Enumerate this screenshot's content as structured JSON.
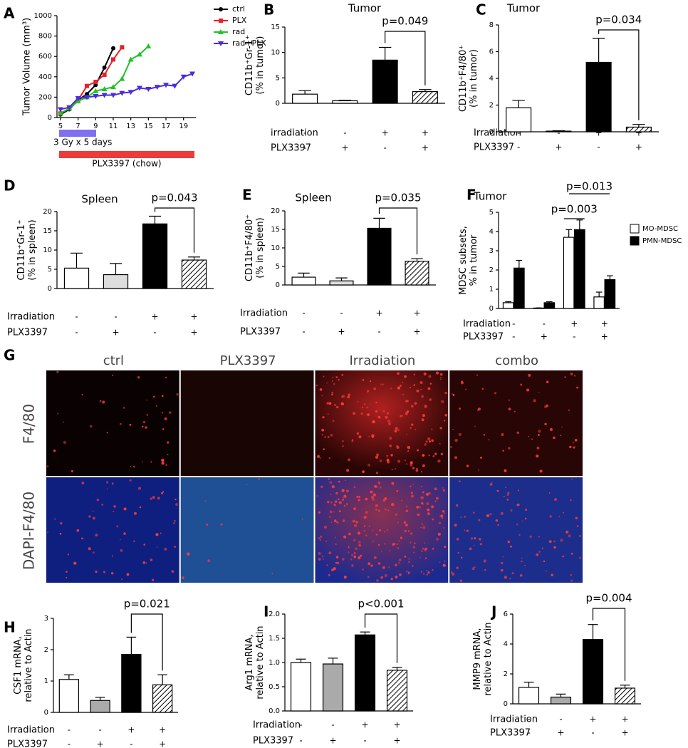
{
  "chart_data": [
    {
      "type": "line",
      "panel": "A",
      "ylabel": [
        "Tumor Volume (mm³)"
      ],
      "xlim": [
        4.6,
        20.4
      ],
      "xticks": [
        5,
        7,
        9,
        11,
        13,
        15,
        17,
        19
      ],
      "ylim": [
        0,
        1000
      ],
      "yticks": [
        0,
        200,
        400,
        600,
        800,
        1000
      ],
      "series": [
        {
          "name": "ctrl",
          "color": "#000000",
          "marker": "circle",
          "x": [
            5,
            6,
            7,
            8,
            9,
            10,
            11
          ],
          "values": [
            30,
            80,
            170,
            230,
            320,
            490,
            680
          ]
        },
        {
          "name": "PLX",
          "color": "#e8202a",
          "marker": "square",
          "x": [
            5,
            6,
            7,
            8,
            9,
            10,
            11,
            12
          ],
          "values": [
            40,
            90,
            170,
            310,
            350,
            420,
            570,
            690
          ]
        },
        {
          "name": "rad",
          "color": "#22c02a",
          "marker": "triangle",
          "x": [
            5,
            6,
            7,
            8,
            9,
            10,
            11,
            12,
            13,
            14,
            15
          ],
          "values": [
            40,
            90,
            160,
            200,
            260,
            280,
            300,
            380,
            570,
            620,
            700
          ]
        },
        {
          "name": "rad+PLX",
          "color": "#4b2ae0",
          "marker": "triangle-down",
          "x": [
            5,
            6,
            7,
            8,
            9,
            10,
            11,
            12,
            13,
            14,
            15,
            16,
            17,
            18,
            19,
            20
          ],
          "values": [
            80,
            100,
            190,
            200,
            210,
            220,
            220,
            240,
            250,
            290,
            280,
            300,
            320,
            310,
            400,
            430
          ]
        }
      ],
      "annotations": [
        {
          "text": "3 Gy x 5 days",
          "color": "#8070f0"
        },
        {
          "text": "PLX3397 (chow)",
          "color": "#f03a3a"
        }
      ]
    },
    {
      "type": "bar",
      "panel": "B",
      "title": "Tumor",
      "ylabel": [
        "CD11b⁺Gr-1⁺",
        "(% in tumor)"
      ],
      "ylim": [
        0,
        15
      ],
      "yticks": [
        0,
        5,
        10,
        15
      ],
      "values": [
        1.8,
        0.5,
        8.5,
        2.3
      ],
      "errors": [
        0.7,
        0.1,
        2.5,
        0.4
      ],
      "colors": [
        "#ffffff",
        "#ffffff",
        "#000000",
        "hatch"
      ],
      "comparison": "p=0.049",
      "rows": [
        {
          "label": "irradiation",
          "signs": [
            "-",
            "-",
            "+",
            "+"
          ]
        },
        {
          "label": "PLX3397",
          "signs": [
            "-",
            "+",
            "-",
            "+"
          ]
        }
      ]
    },
    {
      "type": "bar",
      "panel": "C",
      "title": "Tumor",
      "ylabel": [
        "CD11b⁺F4/80⁺",
        "(% in tumor)"
      ],
      "ylim": [
        0,
        8
      ],
      "yticks": [
        0,
        2,
        4,
        6,
        8
      ],
      "values": [
        1.8,
        0.05,
        5.2,
        0.35
      ],
      "errors": [
        0.55,
        0.03,
        1.8,
        0.2
      ],
      "colors": [
        "#ffffff",
        "#ffffff",
        "#000000",
        "hatch"
      ],
      "comparison": "p=0.034",
      "rows": [
        {
          "label": "Irradiation",
          "signs": [
            "-",
            "-",
            "+",
            "+"
          ]
        },
        {
          "label": "PLX3397",
          "signs": [
            "-",
            "+",
            "-",
            "+"
          ]
        }
      ]
    },
    {
      "type": "bar",
      "panel": "D",
      "title": "Spleen",
      "ylabel": [
        "CD11b⁺Gr-1⁺",
        "(% in spleen)"
      ],
      "ylim": [
        0,
        20
      ],
      "yticks": [
        0,
        5,
        10,
        15,
        20
      ],
      "values": [
        5.3,
        3.6,
        16.8,
        7.4
      ],
      "errors": [
        3.9,
        2.9,
        2.0,
        0.8
      ],
      "colors": [
        "#ffffff",
        "#dddddd",
        "#000000",
        "hatch"
      ],
      "comparison": "p=0.043",
      "rows": [
        {
          "label": "Irradiation",
          "signs": [
            "-",
            "-",
            "+",
            "+"
          ]
        },
        {
          "label": "PLX3397",
          "signs": [
            "-",
            "+",
            "-",
            "+"
          ]
        }
      ]
    },
    {
      "type": "bar",
      "panel": "E",
      "title": "Spleen",
      "ylabel": [
        "CD11b⁺F4/80⁺",
        "(% in spleen)"
      ],
      "ylim": [
        0,
        20
      ],
      "yticks": [
        0,
        5,
        10,
        15,
        20
      ],
      "values": [
        2.1,
        1.1,
        15.3,
        6.4
      ],
      "errors": [
        1.1,
        0.8,
        2.7,
        0.7
      ],
      "colors": [
        "#ffffff",
        "#dddddd",
        "#000000",
        "hatch"
      ],
      "comparison": "p=0.035",
      "rows": [
        {
          "label": "Irradiation",
          "signs": [
            "-",
            "-",
            "+",
            "+"
          ]
        },
        {
          "label": "PLX3397",
          "signs": [
            "-",
            "+",
            "-",
            "+"
          ]
        }
      ]
    },
    {
      "type": "grouped_bar",
      "panel": "F",
      "title": "Tumor",
      "ylabel": [
        "MDSC subsets,",
        "% in tumor"
      ],
      "ylim": [
        0,
        5
      ],
      "yticks": [
        0,
        1,
        2,
        3,
        4,
        5
      ],
      "series": [
        {
          "name": "MO-MDSC",
          "color": "#ffffff",
          "values": [
            0.3,
            0.02,
            3.7,
            0.6
          ],
          "errors": [
            0.05,
            0.01,
            0.4,
            0.25
          ]
        },
        {
          "name": "PMN-MDSC",
          "color": "#000000",
          "values": [
            2.1,
            0.3,
            4.1,
            1.5
          ],
          "errors": [
            0.4,
            0.05,
            0.5,
            0.2
          ]
        }
      ],
      "comparisons": [
        "p=0.003",
        "p=0.013"
      ],
      "rows": [
        {
          "label": "Irradiation",
          "signs": [
            "-",
            "-",
            "+",
            "+"
          ]
        },
        {
          "label": "PLX3397",
          "signs": [
            "-",
            "+",
            "-",
            "+"
          ]
        }
      ]
    },
    {
      "type": "image_grid",
      "panel": "G",
      "columns": [
        "ctrl",
        "PLX3397",
        "Irradiation",
        "combo"
      ],
      "rows": [
        "F4/80",
        "DAPI-F4/80"
      ]
    },
    {
      "type": "bar",
      "panel": "H",
      "ylabel": [
        "CSF1 mRNA,",
        "relative to Actin"
      ],
      "ylim": [
        0,
        3
      ],
      "yticks": [
        0,
        1,
        2,
        3
      ],
      "values": [
        1.05,
        0.38,
        1.85,
        0.88
      ],
      "errors": [
        0.15,
        0.1,
        0.55,
        0.32
      ],
      "colors": [
        "#ffffff",
        "#aaaaaa",
        "#000000",
        "hatch"
      ],
      "comparison": "p=0.021",
      "rows": [
        {
          "label": "Irradiation",
          "signs": [
            "-",
            "-",
            "+",
            "+"
          ]
        },
        {
          "label": "PLX3397",
          "signs": [
            "-",
            "+",
            "-",
            "+"
          ]
        }
      ]
    },
    {
      "type": "bar",
      "panel": "I",
      "ylabel": [
        "Arg1 mRNA,",
        "relative to Actin"
      ],
      "ylim": [
        0,
        2
      ],
      "yticks": [
        {
          "value": 0,
          "label": "0.0"
        },
        0.5,
        {
          "value": 1,
          "label": "1.0"
        },
        1.5,
        {
          "value": 2,
          "label": "2.0"
        }
      ],
      "values": [
        1.0,
        0.97,
        1.57,
        0.84
      ],
      "errors": [
        0.07,
        0.12,
        0.06,
        0.06
      ],
      "colors": [
        "#ffffff",
        "#aaaaaa",
        "#000000",
        "hatch"
      ],
      "comparison": "p<0.001",
      "rows": [
        {
          "label": "Irradiation",
          "signs": [
            "-",
            "-",
            "+",
            "+"
          ]
        },
        {
          "label": "PLX3397",
          "signs": [
            "-",
            "+",
            "-",
            "+"
          ]
        }
      ]
    },
    {
      "type": "bar",
      "panel": "J",
      "ylabel": [
        "MMP9 mRNA,",
        "relative to Actin"
      ],
      "ylim": [
        0,
        6
      ],
      "yticks": [
        0,
        2,
        4,
        6
      ],
      "values": [
        1.1,
        0.45,
        4.3,
        1.05
      ],
      "errors": [
        0.35,
        0.2,
        1.0,
        0.2
      ],
      "colors": [
        "#ffffff",
        "#aaaaaa",
        "#000000",
        "hatch"
      ],
      "comparison": "p=0.004",
      "rows": [
        {
          "label": "Irradiation",
          "signs": [
            "-",
            "-",
            "+",
            "+"
          ]
        },
        {
          "label": "PLX3397",
          "signs": [
            "-",
            "+",
            "-",
            "+"
          ]
        }
      ]
    }
  ]
}
